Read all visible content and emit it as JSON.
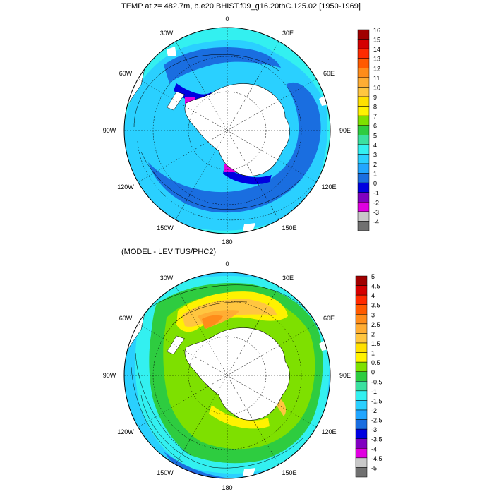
{
  "maps": [
    {
      "title": "TEMP at z= 482.7m, b.e20.BHIST.f09_g16.20thC.125.02 [1950-1969]",
      "lon_labels": [
        "0",
        "30E",
        "60E",
        "90E",
        "120E",
        "150E",
        "180",
        "150W",
        "120W",
        "90W",
        "60W",
        "30W"
      ],
      "colorbar": {
        "labels": [
          "16",
          "15",
          "14",
          "13",
          "12",
          "11",
          "10",
          "9",
          "8",
          "7",
          "6",
          "5",
          "4",
          "3",
          "2",
          "1",
          "0",
          "-1",
          "-2",
          "-3",
          "-4"
        ],
        "colors": [
          "#a00000",
          "#d40000",
          "#ff2a00",
          "#ff5a00",
          "#ff8c1a",
          "#ffad33",
          "#ffc640",
          "#ffe000",
          "#fff200",
          "#7ee000",
          "#2ecc40",
          "#3be0a0",
          "#33f0f0",
          "#2ad0ff",
          "#22a6ff",
          "#1a6ee0",
          "#0000e0",
          "#8000c0",
          "#e000e0",
          "#c8c8c8",
          "#707070"
        ]
      }
    },
    {
      "title": "(MODEL - LEVITUS/PHC2)",
      "lon_labels": [
        "0",
        "30E",
        "60E",
        "90E",
        "120E",
        "150E",
        "180",
        "150W",
        "120W",
        "90W",
        "60W",
        "30W"
      ],
      "colorbar": {
        "labels": [
          "5",
          "4.5",
          "4",
          "3.5",
          "3",
          "2.5",
          "2",
          "1.5",
          "1",
          "0.5",
          "0",
          "-0.5",
          "-1",
          "-1.5",
          "-2",
          "-2.5",
          "-3",
          "-3.5",
          "-4",
          "-4.5",
          "-5"
        ],
        "colors": [
          "#a00000",
          "#d40000",
          "#ff2a00",
          "#ff5a00",
          "#ff8c1a",
          "#ffad33",
          "#ffc640",
          "#ffe000",
          "#fff200",
          "#7ee000",
          "#2ecc40",
          "#3be0a0",
          "#33f0f0",
          "#2ad0ff",
          "#22a6ff",
          "#1a6ee0",
          "#0000e0",
          "#8000c0",
          "#e000e0",
          "#c8c8c8",
          "#707070"
        ]
      }
    }
  ]
}
